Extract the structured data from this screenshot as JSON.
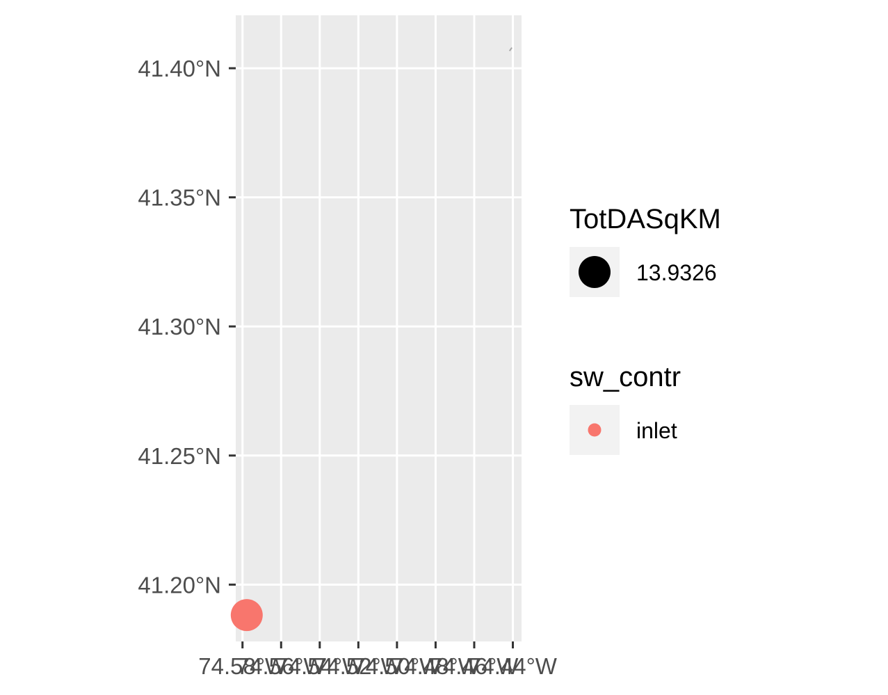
{
  "chart_data": {
    "type": "scatter",
    "title": "",
    "xlabel": "",
    "ylabel": "",
    "xlim": [
      -74.5835,
      -74.4355
    ],
    "ylim": [
      41.178,
      41.4205
    ],
    "x_ticks": [
      {
        "value": -74.58,
        "label": "74.58°W"
      },
      {
        "value": -74.56,
        "label": "74.56°W"
      },
      {
        "value": -74.54,
        "label": "74.54°W"
      },
      {
        "value": -74.52,
        "label": "74.52°W"
      },
      {
        "value": -74.5,
        "label": "74.50°W"
      },
      {
        "value": -74.48,
        "label": "74.48°W"
      },
      {
        "value": -74.46,
        "label": "74.46°W"
      },
      {
        "value": -74.44,
        "label": "74.44°W"
      }
    ],
    "y_ticks": [
      {
        "value": 41.2,
        "label": "41.20°N"
      },
      {
        "value": 41.25,
        "label": "41.25°N"
      },
      {
        "value": 41.3,
        "label": "41.30°N"
      },
      {
        "value": 41.35,
        "label": "41.35°N"
      },
      {
        "value": 41.4,
        "label": "41.40°N"
      }
    ],
    "grid": true,
    "points": [
      {
        "lon": -74.5778,
        "lat": 41.1882,
        "TotDASqKM": 13.9326,
        "sw_contr": "inlet"
      }
    ],
    "flowline": [
      {
        "lon": -74.4417,
        "lat": 41.4067
      },
      {
        "lon": -74.4405,
        "lat": 41.408
      }
    ],
    "legends": [
      {
        "title": "TotDASqKM",
        "kind": "size",
        "entries": [
          {
            "label": "13.9326",
            "color": "#000000"
          }
        ]
      },
      {
        "title": "sw_contr",
        "kind": "color",
        "entries": [
          {
            "label": "inlet",
            "color": "#F8766D"
          }
        ]
      }
    ],
    "legend_position": "right",
    "colors": {
      "panel": "#EBEBEB",
      "grid": "#FFFFFF",
      "key_background": "#F2F2F2",
      "point": "#F8766D",
      "flowline": "#A6A6A6"
    }
  }
}
